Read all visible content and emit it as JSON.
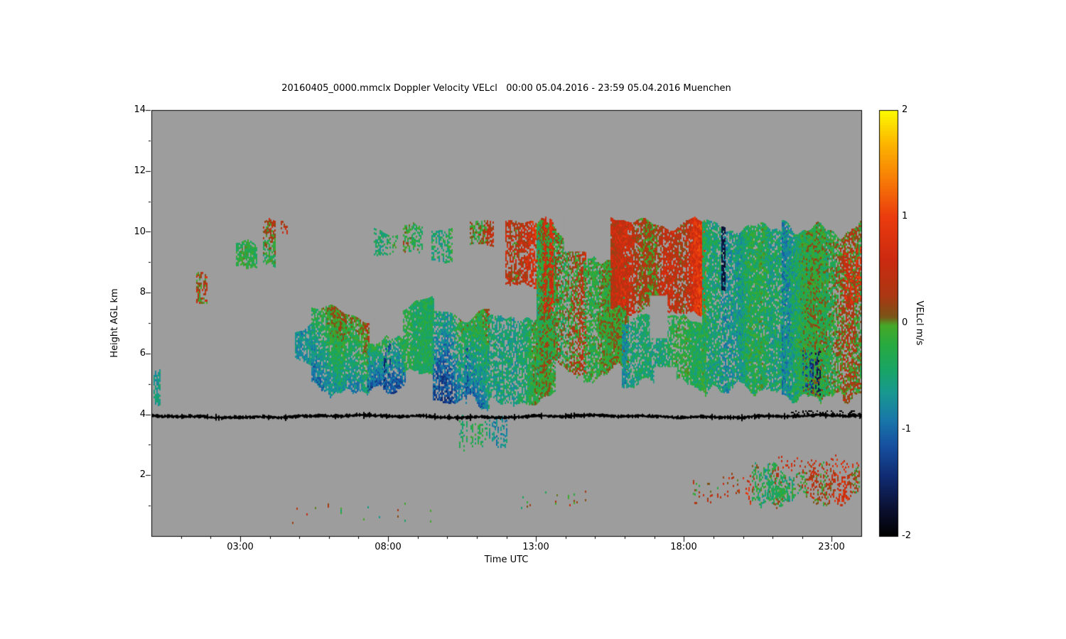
{
  "chart_data": {
    "type": "heatmap",
    "title": "20160405_0000.mmclx Doppler Velocity VELcl   00:00 05.04.2016 - 23:59 05.04.2016 Muenchen",
    "xlabel": "Time UTC",
    "ylabel": "Height AGL km",
    "colorbar_label": "VELcl m/s",
    "x_ticks": [
      "03:00",
      "08:00",
      "13:00",
      "18:00",
      "23:00"
    ],
    "x_tick_hours": [
      3,
      8,
      13,
      18,
      23
    ],
    "x_range_hours": [
      0,
      24
    ],
    "y_ticks": [
      "2",
      "4",
      "6",
      "8",
      "10",
      "12",
      "14"
    ],
    "y_tick_km": [
      2,
      4,
      6,
      8,
      10,
      12,
      14
    ],
    "y_range_km": [
      0,
      14
    ],
    "colorbar_ticks": [
      "2",
      "1",
      "0",
      "-1",
      "-2"
    ],
    "colorbar_tick_values": [
      2,
      1,
      0,
      -1,
      -2
    ],
    "value_range": [
      -2,
      2
    ],
    "no_data_color": "#9d9d9d",
    "frame_color": "#000000",
    "texture_seed": 20160405,
    "colormap_stops": [
      {
        "v": -2.0,
        "c": "#000000"
      },
      {
        "v": -1.75,
        "c": "#0b1030"
      },
      {
        "v": -1.45,
        "c": "#102a70"
      },
      {
        "v": -1.15,
        "c": "#1650a0"
      },
      {
        "v": -0.9,
        "c": "#1878a8"
      },
      {
        "v": -0.65,
        "c": "#189890"
      },
      {
        "v": -0.45,
        "c": "#18a468"
      },
      {
        "v": -0.2,
        "c": "#28aa40"
      },
      {
        "v": -0.02,
        "c": "#46a828"
      },
      {
        "v": 0.06,
        "c": "#7a5618"
      },
      {
        "v": 0.25,
        "c": "#aa3812"
      },
      {
        "v": 0.6,
        "c": "#cc2a10"
      },
      {
        "v": 1.0,
        "c": "#ea3c0e"
      },
      {
        "v": 1.35,
        "c": "#f87c06"
      },
      {
        "v": 1.7,
        "c": "#fcb800"
      },
      {
        "v": 2.0,
        "c": "#fcfc00"
      }
    ],
    "black_line": {
      "t": [
        0,
        24
      ],
      "center_km": 3.93,
      "amp_km": 0.05,
      "half_thickness_km": 0.045
    },
    "black_smear": {
      "t": [
        21.6,
        23.95
      ],
      "h": [
        3.95,
        4.14
      ],
      "density": 0.35
    },
    "holes": [
      {
        "t": [
          16.85,
          17.45
        ],
        "h": [
          6.5,
          7.9
        ]
      },
      {
        "t": [
          17.0,
          17.75
        ],
        "h": [
          4.75,
          5.55
        ]
      },
      {
        "t": [
          13.95,
          15.05
        ],
        "h": [
          9.35,
          10.5
        ]
      }
    ],
    "features": [
      {
        "name": "left-edge-streak",
        "t": [
          0.05,
          0.3
        ],
        "h": [
          4.2,
          5.7
        ],
        "base": -0.5,
        "spread": 0.4,
        "density": 0.7,
        "edge": 0.3
      },
      {
        "name": "patch-0140",
        "t": [
          1.5,
          1.85
        ],
        "h": [
          7.4,
          8.8
        ],
        "base": 0.1,
        "spread": 0.9,
        "density": 0.65,
        "edge": 0.3
      },
      {
        "name": "patch-0300",
        "t": [
          2.85,
          3.55
        ],
        "h": [
          8.8,
          9.75
        ],
        "base": -0.35,
        "spread": 0.45,
        "density": 0.7,
        "edge": 0.3
      },
      {
        "name": "patch-0350",
        "t": [
          3.75,
          4.2
        ],
        "h": [
          8.8,
          10.45
        ],
        "base": -0.15,
        "spread": 0.65,
        "density": 0.75,
        "edge": 0.3,
        "grad": 0.35
      },
      {
        "name": "streak-0430",
        "t": [
          4.35,
          4.6
        ],
        "h": [
          9.9,
          10.4
        ],
        "base": 0.55,
        "spread": 0.45,
        "density": 0.6,
        "edge": 0.15
      },
      {
        "name": "midcloud-a",
        "t": [
          4.85,
          5.5
        ],
        "h": [
          5.6,
          7.0
        ],
        "base": -0.45,
        "spread": 0.45,
        "density": 0.8,
        "edge": 0.4
      },
      {
        "name": "midcloud-b",
        "t": [
          5.4,
          7.35
        ],
        "h": [
          4.55,
          7.6
        ],
        "base": -0.5,
        "spread": 0.55,
        "density": 0.88,
        "edge": 0.6,
        "grad": 0.4
      },
      {
        "name": "midcloud-c",
        "t": [
          7.3,
          8.6
        ],
        "h": [
          4.55,
          6.6
        ],
        "base": -0.75,
        "spread": 0.55,
        "density": 0.85,
        "edge": 0.5,
        "grad": 0.45
      },
      {
        "name": "blue-streaks-0750",
        "t": [
          7.7,
          8.05
        ],
        "h": [
          4.7,
          6.4
        ],
        "base": -1.3,
        "spread": 0.5,
        "density": 0.4,
        "edge": 0.3,
        "colgap": 0.4
      },
      {
        "name": "midcloud-d",
        "t": [
          8.5,
          9.55
        ],
        "h": [
          5.3,
          7.9
        ],
        "base": -0.4,
        "spread": 0.45,
        "density": 0.85,
        "edge": 0.5
      },
      {
        "name": "midcloud-e",
        "t": [
          9.5,
          11.4
        ],
        "h": [
          4.15,
          7.6
        ],
        "base": -0.55,
        "spread": 0.6,
        "density": 0.88,
        "edge": 0.6,
        "grad": 0.4
      },
      {
        "name": "blue-streaks-1040",
        "t": [
          10.55,
          10.85
        ],
        "h": [
          4.2,
          6.2
        ],
        "base": -1.25,
        "spread": 0.5,
        "density": 0.4,
        "edge": 0.3,
        "colgap": 0.4
      },
      {
        "name": "virga-1130",
        "t": [
          10.4,
          12.0
        ],
        "h": [
          2.75,
          4.1
        ],
        "base": -0.5,
        "spread": 0.5,
        "density": 0.45,
        "edge": 0.5,
        "colgap": 0.25
      },
      {
        "name": "midcloud-f",
        "t": [
          11.35,
          13.65
        ],
        "h": [
          4.3,
          7.3
        ],
        "base": -0.45,
        "spread": 0.55,
        "density": 0.85,
        "edge": 0.6
      },
      {
        "name": "upper-0800",
        "t": [
          7.5,
          8.35
        ],
        "h": [
          9.2,
          10.15
        ],
        "base": -0.3,
        "spread": 0.5,
        "density": 0.55,
        "edge": 0.3,
        "colgap": 0.15
      },
      {
        "name": "upper-0840",
        "t": [
          8.5,
          9.15
        ],
        "h": [
          9.3,
          10.35
        ],
        "base": -0.1,
        "spread": 0.6,
        "density": 0.6,
        "edge": 0.3
      },
      {
        "name": "upper-0930",
        "t": [
          9.45,
          10.15
        ],
        "h": [
          8.85,
          10.2
        ],
        "base": -0.15,
        "spread": 0.6,
        "density": 0.6,
        "edge": 0.3
      },
      {
        "name": "upper-1100",
        "t": [
          10.75,
          11.55
        ],
        "h": [
          9.5,
          10.45
        ],
        "base": 0.0,
        "spread": 0.6,
        "density": 0.6,
        "edge": 0.25
      },
      {
        "name": "upper-1230",
        "t": [
          11.95,
          13.1
        ],
        "h": [
          8.1,
          10.45
        ],
        "base": 0.25,
        "spread": 0.7,
        "density": 0.75,
        "edge": 0.4
      },
      {
        "name": "system-a",
        "t": [
          13.0,
          14.7
        ],
        "h": [
          5.2,
          10.5
        ],
        "base": 0.05,
        "spread": 0.75,
        "density": 0.85,
        "edge": 0.7
      },
      {
        "name": "red-column-1330",
        "t": [
          13.25,
          13.55
        ],
        "h": [
          7.3,
          10.5
        ],
        "base": 0.8,
        "spread": 0.5,
        "density": 0.7,
        "edge": 0.2,
        "colgap": 0.2
      },
      {
        "name": "system-b",
        "t": [
          14.6,
          16.1
        ],
        "h": [
          5.0,
          9.2
        ],
        "base": -0.35,
        "spread": 0.55,
        "density": 0.85,
        "edge": 0.8
      },
      {
        "name": "system-top-red",
        "t": [
          15.5,
          18.7
        ],
        "h": [
          7.2,
          10.5
        ],
        "base": 0.55,
        "spread": 0.65,
        "density": 0.9,
        "edge": 0.5
      },
      {
        "name": "system-low",
        "t": [
          15.9,
          18.7
        ],
        "h": [
          4.75,
          7.3
        ],
        "base": -0.45,
        "spread": 0.5,
        "density": 0.88,
        "edge": 0.5
      },
      {
        "name": "system-c",
        "t": [
          18.6,
          21.4
        ],
        "h": [
          4.6,
          10.45
        ],
        "base": -0.2,
        "spread": 0.65,
        "density": 0.9,
        "edge": 0.6
      },
      {
        "name": "dark-column-1920",
        "t": [
          19.25,
          19.4
        ],
        "h": [
          8.0,
          10.2
        ],
        "base": -1.8,
        "spread": 0.3,
        "density": 0.7,
        "edge": 0.2
      },
      {
        "name": "system-d",
        "t": [
          21.3,
          24.0
        ],
        "h": [
          4.35,
          10.45
        ],
        "base": -0.3,
        "spread": 0.7,
        "density": 0.9,
        "edge": 0.7
      },
      {
        "name": "blue-streaks-2200",
        "t": [
          22.0,
          22.7
        ],
        "h": [
          4.6,
          6.3
        ],
        "base": -1.2,
        "spread": 0.5,
        "density": 0.5,
        "edge": 0.3,
        "colgap": 0.3
      },
      {
        "name": "red-right-edge",
        "t": [
          23.4,
          24.0
        ],
        "h": [
          7.6,
          9.6
        ],
        "base": 0.7,
        "spread": 0.5,
        "density": 0.6,
        "edge": 0.3,
        "colgap": 0.2
      },
      {
        "name": "lowlevel-morning",
        "t": [
          4.4,
          9.6
        ],
        "h": [
          0.35,
          1.1
        ],
        "base": 0.15,
        "spread": 0.8,
        "density": 0.05,
        "edge": 0.2,
        "colgap": 0.5
      },
      {
        "name": "lowlevel-noon",
        "t": [
          12.1,
          15.1
        ],
        "h": [
          0.8,
          1.5
        ],
        "base": 0.1,
        "spread": 0.8,
        "density": 0.06,
        "edge": 0.2,
        "colgap": 0.5
      },
      {
        "name": "lowlevel-1900",
        "t": [
          18.3,
          20.4
        ],
        "h": [
          1.0,
          2.1
        ],
        "base": 0.3,
        "spread": 0.8,
        "density": 0.18,
        "edge": 0.4,
        "colgap": 0.3
      },
      {
        "name": "lowlevel-2100",
        "t": [
          20.3,
          23.95
        ],
        "h": [
          0.9,
          2.45
        ],
        "base": 0.1,
        "spread": 0.8,
        "density": 0.45,
        "edge": 0.6
      },
      {
        "name": "lowlevel-green-blob",
        "t": [
          20.8,
          21.5
        ],
        "h": [
          1.1,
          1.9
        ],
        "base": -0.4,
        "spread": 0.4,
        "density": 0.7,
        "edge": 0.3
      },
      {
        "name": "lowlevel-red-arc",
        "t": [
          20.6,
          23.95
        ],
        "h": [
          2.0,
          2.7
        ],
        "base": 0.45,
        "spread": 0.5,
        "density": 0.15,
        "edge": 0.3,
        "colgap": 0.35
      }
    ]
  }
}
